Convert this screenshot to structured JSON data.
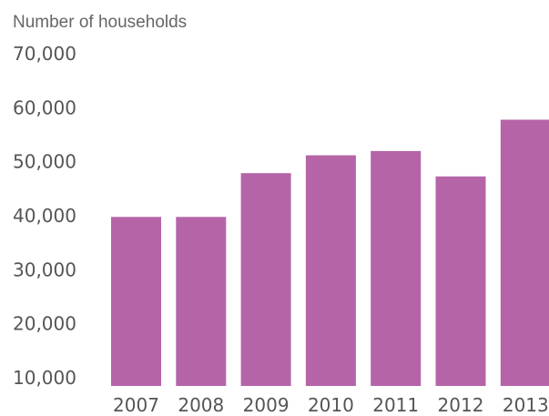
{
  "chart_data": {
    "type": "bar",
    "ylabel": "Number of households",
    "categories": [
      "2007",
      "2008",
      "2009",
      "2010",
      "2011",
      "2012",
      "2013"
    ],
    "values": [
      41300,
      41300,
      49400,
      52700,
      53500,
      48800,
      59300
    ],
    "ylim": [
      10000,
      70000
    ],
    "yticks": [
      10000,
      20000,
      30000,
      40000,
      50000,
      60000,
      70000
    ],
    "ytick_labels": [
      "10,000",
      "20,000",
      "30,000",
      "40,000",
      "50,000",
      "60,000",
      "70,000"
    ],
    "bar_color": "#b565a7",
    "grid": false,
    "legend": "none"
  }
}
